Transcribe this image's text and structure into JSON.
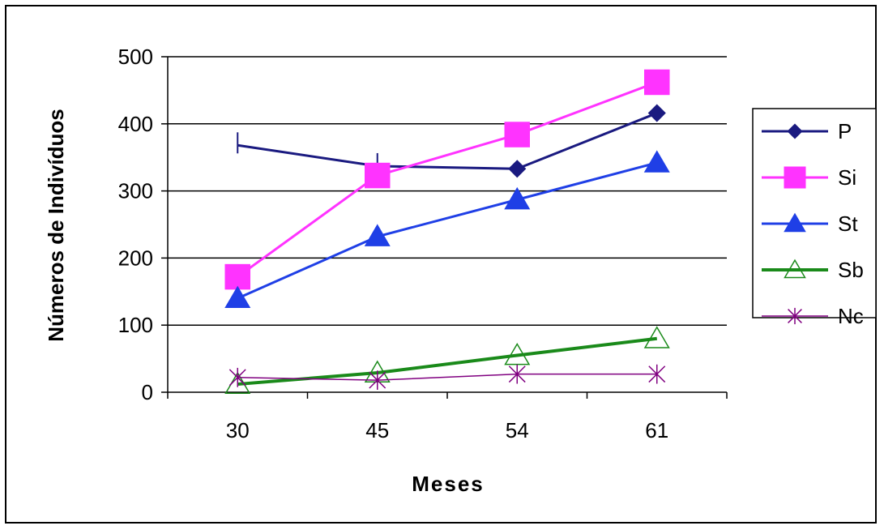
{
  "chart_data": {
    "type": "line",
    "title": "",
    "xlabel": "Meses",
    "ylabel": "Números de Indivíduos",
    "categories": [
      "30",
      "45",
      "54",
      "61"
    ],
    "ylim": [
      0,
      500
    ],
    "yticks": [
      "0",
      "100",
      "200",
      "300",
      "400",
      "500"
    ],
    "grid": "horizontal",
    "legend_position": "right",
    "series": [
      {
        "name": "P",
        "values": [
          368,
          337,
          333,
          416
        ],
        "color": "#1a1a80",
        "marker": "diamond",
        "marker_fill": "#1a1a80"
      },
      {
        "name": "Si",
        "values": [
          172,
          323,
          384,
          462
        ],
        "color": "#ff33ff",
        "marker": "square",
        "marker_fill": "#ff33ff"
      },
      {
        "name": "St",
        "values": [
          140,
          232,
          287,
          342
        ],
        "color": "#1f3fe6",
        "marker": "triangle",
        "marker_fill": "#1f3fe6"
      },
      {
        "name": "Sb",
        "values": [
          12,
          29,
          55,
          80
        ],
        "color": "#1a8a1a",
        "marker": "triangle-open",
        "marker_fill": "none"
      },
      {
        "name": "Nc",
        "values": [
          22,
          18,
          27,
          27
        ],
        "color": "#800080",
        "marker": "asterisk",
        "marker_fill": "none"
      }
    ]
  }
}
